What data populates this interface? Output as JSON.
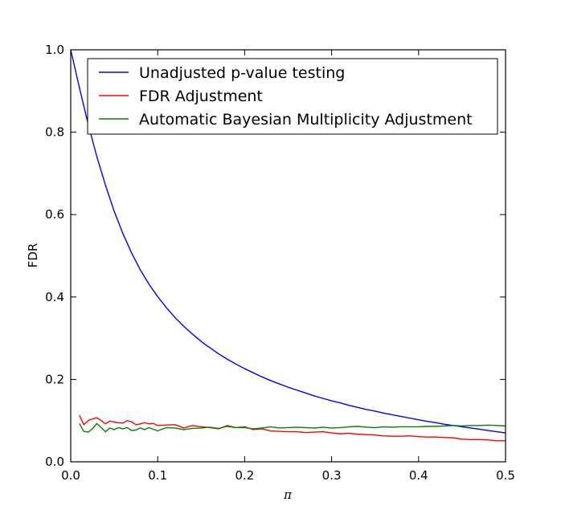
{
  "chart_data": {
    "type": "line",
    "title": "",
    "xlabel": "π",
    "ylabel": "FDR",
    "xlim": [
      0.0,
      0.5
    ],
    "ylim": [
      0.0,
      1.0
    ],
    "xticks": [
      0.0,
      0.1,
      0.2,
      0.3,
      0.4,
      0.5
    ],
    "xtick_labels": [
      "0.0",
      "0.1",
      "0.2",
      "0.3",
      "0.4",
      "0.5"
    ],
    "yticks": [
      0.0,
      0.2,
      0.4,
      0.6,
      0.8,
      1.0
    ],
    "ytick_labels": [
      "0.0",
      "0.2",
      "0.4",
      "0.6",
      "0.8",
      "1.0"
    ],
    "grid": false,
    "legend_position": "top-right",
    "series": [
      {
        "name": "Unadjusted p-value testing",
        "color": "#0000ff",
        "x": [
          0.0,
          0.01,
          0.02,
          0.03,
          0.04,
          0.05,
          0.06,
          0.07,
          0.08,
          0.09,
          0.1,
          0.11,
          0.12,
          0.13,
          0.14,
          0.15,
          0.16,
          0.17,
          0.18,
          0.19,
          0.2,
          0.21,
          0.22,
          0.23,
          0.24,
          0.25,
          0.26,
          0.27,
          0.28,
          0.29,
          0.3,
          0.31,
          0.32,
          0.33,
          0.34,
          0.35,
          0.36,
          0.37,
          0.38,
          0.39,
          0.4,
          0.41,
          0.42,
          0.43,
          0.44,
          0.45,
          0.46,
          0.47,
          0.48,
          0.49,
          0.5
        ],
        "y": [
          1.0,
          0.908,
          0.82,
          0.741,
          0.671,
          0.608,
          0.554,
          0.507,
          0.466,
          0.431,
          0.401,
          0.374,
          0.35,
          0.329,
          0.31,
          0.292,
          0.277,
          0.262,
          0.249,
          0.237,
          0.226,
          0.216,
          0.206,
          0.197,
          0.189,
          0.181,
          0.174,
          0.167,
          0.16,
          0.154,
          0.148,
          0.143,
          0.137,
          0.132,
          0.127,
          0.123,
          0.118,
          0.114,
          0.11,
          0.106,
          0.102,
          0.098,
          0.095,
          0.091,
          0.088,
          0.085,
          0.082,
          0.079,
          0.076,
          0.073,
          0.07
        ]
      },
      {
        "name": "FDR Adjustment",
        "color": "#ff0000",
        "x": [
          0.01,
          0.015,
          0.02,
          0.025,
          0.03,
          0.035,
          0.04,
          0.045,
          0.05,
          0.055,
          0.06,
          0.065,
          0.07,
          0.075,
          0.08,
          0.085,
          0.09,
          0.095,
          0.1,
          0.11,
          0.12,
          0.13,
          0.14,
          0.15,
          0.16,
          0.17,
          0.18,
          0.19,
          0.2,
          0.21,
          0.22,
          0.23,
          0.24,
          0.25,
          0.26,
          0.27,
          0.28,
          0.29,
          0.3,
          0.31,
          0.32,
          0.33,
          0.34,
          0.35,
          0.36,
          0.37,
          0.38,
          0.39,
          0.4,
          0.41,
          0.42,
          0.43,
          0.44,
          0.45,
          0.46,
          0.47,
          0.48,
          0.49,
          0.5
        ],
        "y": [
          0.113,
          0.09,
          0.1,
          0.104,
          0.107,
          0.1,
          0.092,
          0.099,
          0.096,
          0.095,
          0.094,
          0.1,
          0.097,
          0.09,
          0.092,
          0.095,
          0.092,
          0.093,
          0.088,
          0.089,
          0.09,
          0.082,
          0.088,
          0.085,
          0.083,
          0.08,
          0.088,
          0.083,
          0.085,
          0.078,
          0.08,
          0.075,
          0.074,
          0.073,
          0.073,
          0.071,
          0.072,
          0.073,
          0.07,
          0.068,
          0.069,
          0.067,
          0.066,
          0.065,
          0.063,
          0.062,
          0.062,
          0.063,
          0.061,
          0.06,
          0.06,
          0.059,
          0.058,
          0.055,
          0.054,
          0.054,
          0.053,
          0.051,
          0.051
        ]
      },
      {
        "name": "Automatic Bayesian Multiplicity Adjustment",
        "color": "#008000",
        "x": [
          0.01,
          0.015,
          0.02,
          0.025,
          0.03,
          0.035,
          0.04,
          0.045,
          0.05,
          0.055,
          0.06,
          0.065,
          0.07,
          0.075,
          0.08,
          0.085,
          0.09,
          0.095,
          0.1,
          0.11,
          0.12,
          0.13,
          0.14,
          0.15,
          0.16,
          0.17,
          0.18,
          0.19,
          0.2,
          0.21,
          0.22,
          0.23,
          0.24,
          0.25,
          0.26,
          0.27,
          0.28,
          0.29,
          0.3,
          0.31,
          0.32,
          0.33,
          0.34,
          0.35,
          0.36,
          0.37,
          0.38,
          0.39,
          0.4,
          0.41,
          0.42,
          0.43,
          0.44,
          0.45,
          0.46,
          0.47,
          0.48,
          0.49,
          0.5
        ],
        "y": [
          0.093,
          0.074,
          0.072,
          0.08,
          0.093,
          0.083,
          0.073,
          0.082,
          0.078,
          0.083,
          0.08,
          0.083,
          0.076,
          0.077,
          0.082,
          0.078,
          0.083,
          0.079,
          0.075,
          0.083,
          0.082,
          0.078,
          0.081,
          0.082,
          0.084,
          0.081,
          0.086,
          0.083,
          0.083,
          0.08,
          0.082,
          0.085,
          0.082,
          0.083,
          0.084,
          0.083,
          0.082,
          0.084,
          0.082,
          0.083,
          0.085,
          0.086,
          0.084,
          0.083,
          0.085,
          0.084,
          0.085,
          0.085,
          0.085,
          0.086,
          0.086,
          0.087,
          0.088,
          0.087,
          0.088,
          0.088,
          0.089,
          0.088,
          0.087
        ]
      }
    ]
  }
}
